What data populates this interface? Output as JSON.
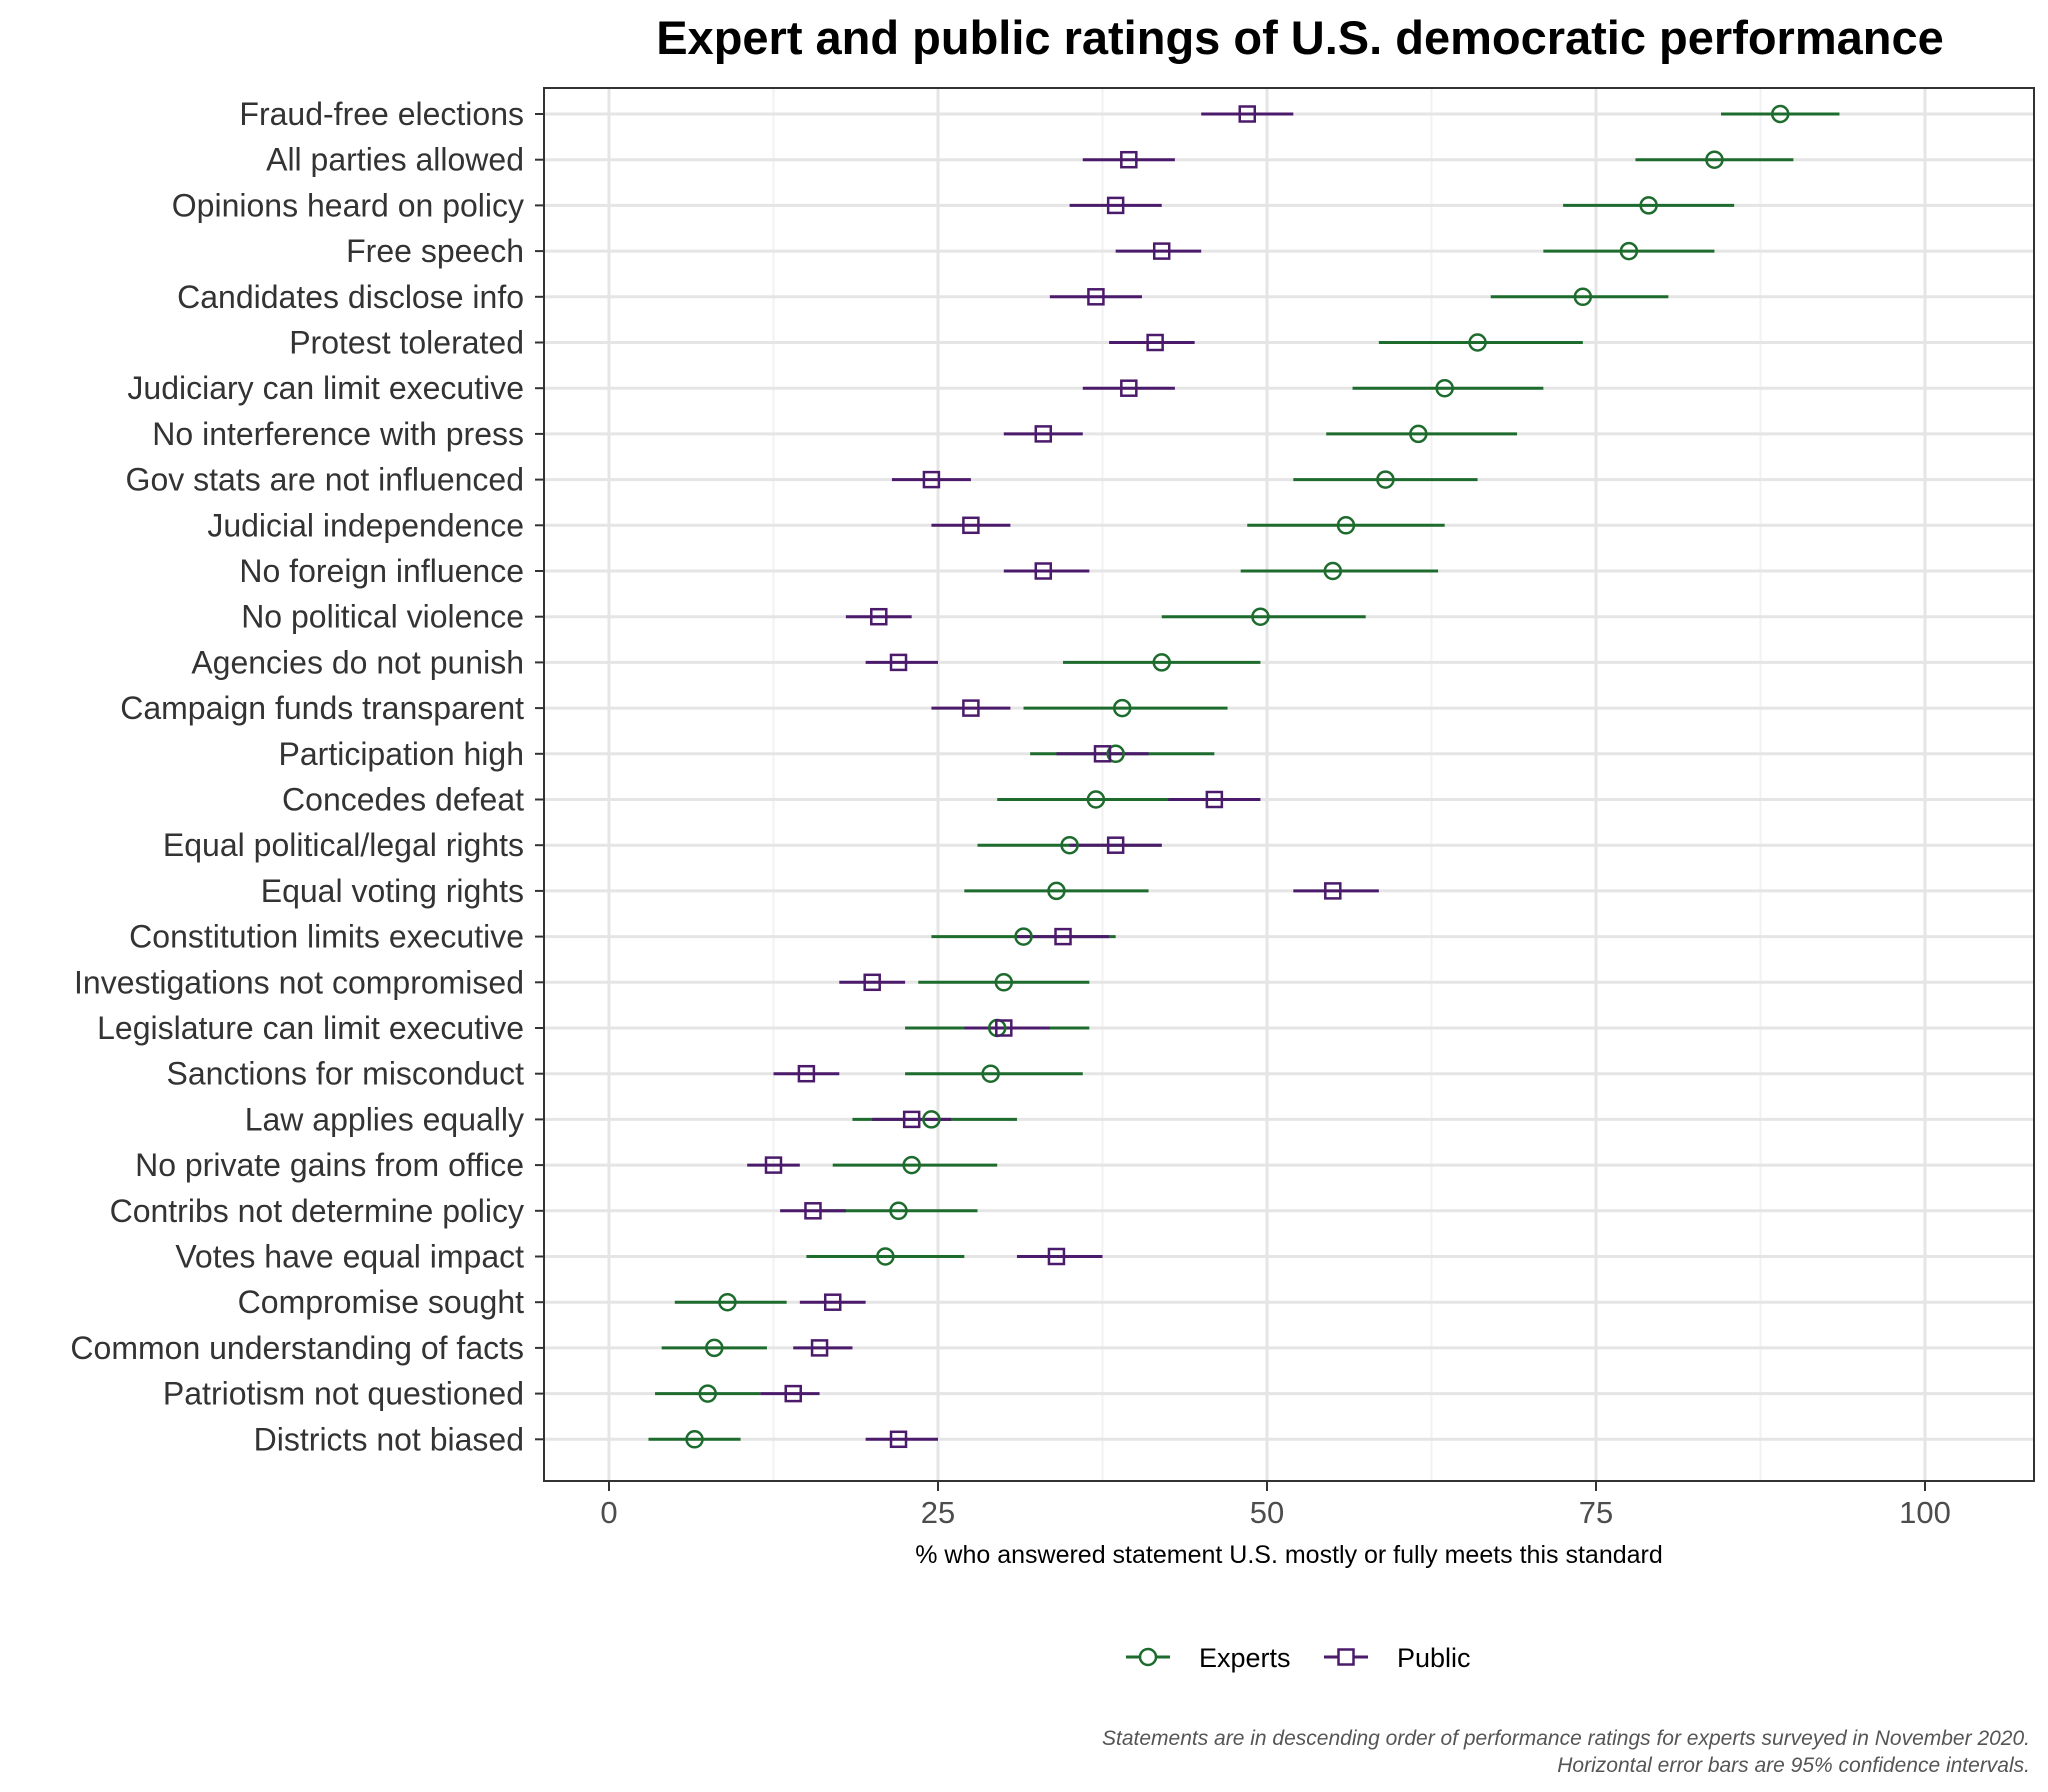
{
  "chart_data": {
    "type": "scatter",
    "title": "Expert and public ratings of U.S. democratic performance",
    "xlabel": "% who answered statement U.S. mostly or fully meets this standard",
    "ylabel": "",
    "xlim": [
      -5,
      108
    ],
    "xticks": [
      0,
      25,
      50,
      75,
      100
    ],
    "grid": true,
    "legend_position": "bottom",
    "categories": [
      "Fraud-free elections",
      "All parties allowed",
      "Opinions heard on policy",
      "Free speech",
      "Candidates disclose info",
      "Protest tolerated",
      "Judiciary can limit executive",
      "No interference with press",
      "Gov stats are not influenced",
      "Judicial independence",
      "No foreign influence",
      "No political violence",
      "Agencies do not punish",
      "Campaign funds transparent",
      "Participation high",
      "Concedes defeat",
      "Equal political/legal rights",
      "Equal voting rights",
      "Constitution limits executive",
      "Investigations not compromised",
      "Legislature can limit executive",
      "Sanctions for misconduct",
      "Law applies equally",
      "No private gains from office",
      "Contribs not determine policy",
      "Votes have equal impact",
      "Compromise sought",
      "Common understanding of facts",
      "Patriotism not questioned",
      "Districts not biased"
    ],
    "series": [
      {
        "name": "Experts",
        "color": "#1e6b2e",
        "marker": "circle",
        "values": [
          89,
          84,
          79,
          77.5,
          74,
          66,
          63.5,
          61.5,
          59,
          56,
          55,
          49.5,
          42,
          39,
          38.5,
          37,
          35,
          34,
          31.5,
          30,
          29.5,
          29,
          24.5,
          23,
          22,
          21,
          9,
          8,
          7.5,
          6.5
        ],
        "ci_low": [
          84.5,
          78,
          72.5,
          71,
          67,
          58.5,
          56.5,
          54.5,
          52,
          48.5,
          48,
          42,
          34.5,
          31.5,
          32,
          29.5,
          28,
          27,
          24.5,
          23.5,
          22.5,
          22.5,
          18.5,
          17,
          16,
          15,
          5,
          4,
          3.5,
          3
        ],
        "ci_high": [
          93.5,
          90,
          85.5,
          84,
          80.5,
          74,
          71,
          69,
          66,
          63.5,
          63,
          57.5,
          49.5,
          47,
          46,
          44.5,
          42,
          41,
          38.5,
          36.5,
          36.5,
          36,
          31,
          29.5,
          28,
          27,
          13.5,
          12,
          11.5,
          10
        ]
      },
      {
        "name": "Public",
        "color": "#4b1a6b",
        "marker": "square",
        "values": [
          48.5,
          39.5,
          38.5,
          42,
          37,
          41.5,
          39.5,
          33,
          24.5,
          27.5,
          33,
          20.5,
          22,
          27.5,
          37.5,
          46,
          38.5,
          55,
          34.5,
          20,
          30,
          15,
          23,
          12.5,
          15.5,
          34,
          17,
          16,
          14,
          22
        ],
        "ci_low": [
          45,
          36,
          35,
          38.5,
          33.5,
          38,
          36,
          30,
          21.5,
          24.5,
          30,
          18,
          19.5,
          24.5,
          34,
          42.5,
          35,
          52,
          31,
          17.5,
          27,
          12.5,
          20,
          10.5,
          13,
          31,
          14.5,
          14,
          11.5,
          19.5
        ],
        "ci_high": [
          52,
          43,
          42,
          45,
          40.5,
          44.5,
          43,
          36,
          27.5,
          30.5,
          36.5,
          23,
          25,
          30.5,
          41,
          49.5,
          42,
          58.5,
          38,
          22.5,
          33.5,
          17.5,
          26,
          14.5,
          18,
          37.5,
          19.5,
          18.5,
          16,
          25
        ]
      }
    ],
    "caption_line1": "Statements are in descending order of performance ratings for experts surveyed in November 2020.",
    "caption_line2": "Horizontal error bars are 95% confidence intervals."
  }
}
